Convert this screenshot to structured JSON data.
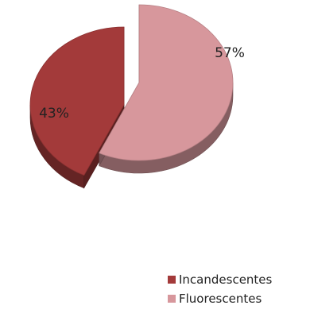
{
  "chart_data": {
    "type": "pie",
    "slices": [
      {
        "name": "Incandescentes",
        "value": 43,
        "label": "43%",
        "color": "#a33a3a"
      },
      {
        "name": "Fluorescentes",
        "value": 57,
        "label": "57%",
        "color": "#d7979c"
      }
    ],
    "legend_position": "bottom-right",
    "style": "3d-exploded"
  }
}
